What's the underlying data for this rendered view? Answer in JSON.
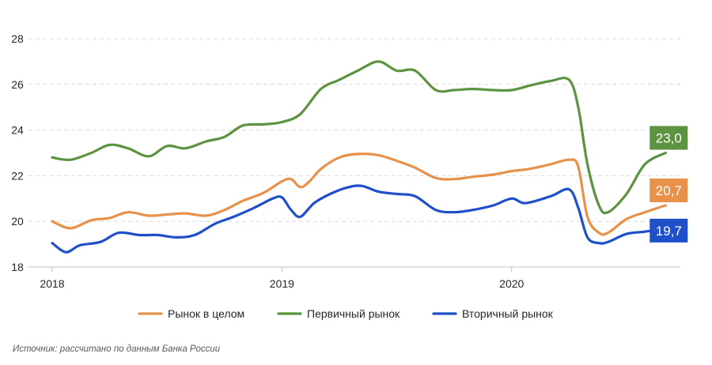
{
  "source_note": "Источник: рассчитано по данным Банка России",
  "chart_data": {
    "type": "line",
    "x_unit": "year (decimal)",
    "xlim": [
      2018,
      2020.7
    ],
    "x_ticks": [
      "2018",
      "2019",
      "2020"
    ],
    "ylim": [
      18,
      28
    ],
    "y_ticks": [
      18,
      20,
      22,
      24,
      26,
      28
    ],
    "grid": "horizontal dashed",
    "legend": "bottom",
    "series": [
      {
        "name": "Рынок в целом",
        "color": "#E8914A",
        "end_label": "20,7",
        "points": [
          [
            2018.0,
            20.0
          ],
          [
            2018.08,
            19.7
          ],
          [
            2018.17,
            20.05
          ],
          [
            2018.25,
            20.15
          ],
          [
            2018.33,
            20.4
          ],
          [
            2018.42,
            20.25
          ],
          [
            2018.5,
            20.3
          ],
          [
            2018.58,
            20.35
          ],
          [
            2018.67,
            20.25
          ],
          [
            2018.75,
            20.5
          ],
          [
            2018.83,
            20.9
          ],
          [
            2018.92,
            21.25
          ],
          [
            2019.0,
            21.75
          ],
          [
            2019.04,
            21.85
          ],
          [
            2019.08,
            21.5
          ],
          [
            2019.12,
            21.75
          ],
          [
            2019.17,
            22.3
          ],
          [
            2019.25,
            22.8
          ],
          [
            2019.33,
            22.95
          ],
          [
            2019.42,
            22.9
          ],
          [
            2019.5,
            22.65
          ],
          [
            2019.58,
            22.35
          ],
          [
            2019.67,
            21.9
          ],
          [
            2019.75,
            21.85
          ],
          [
            2019.83,
            21.95
          ],
          [
            2019.92,
            22.05
          ],
          [
            2020.0,
            22.2
          ],
          [
            2020.08,
            22.3
          ],
          [
            2020.17,
            22.5
          ],
          [
            2020.25,
            22.7
          ],
          [
            2020.29,
            22.4
          ],
          [
            2020.33,
            20.2
          ],
          [
            2020.38,
            19.5
          ],
          [
            2020.42,
            19.5
          ],
          [
            2020.5,
            20.1
          ],
          [
            2020.58,
            20.4
          ],
          [
            2020.67,
            20.7
          ]
        ]
      },
      {
        "name": "Первичный рынок",
        "color": "#5B9340",
        "end_label": "23,0",
        "points": [
          [
            2018.0,
            22.8
          ],
          [
            2018.08,
            22.7
          ],
          [
            2018.17,
            23.0
          ],
          [
            2018.25,
            23.35
          ],
          [
            2018.33,
            23.2
          ],
          [
            2018.42,
            22.85
          ],
          [
            2018.5,
            23.3
          ],
          [
            2018.58,
            23.2
          ],
          [
            2018.67,
            23.5
          ],
          [
            2018.75,
            23.7
          ],
          [
            2018.83,
            24.2
          ],
          [
            2018.92,
            24.25
          ],
          [
            2019.0,
            24.35
          ],
          [
            2019.08,
            24.7
          ],
          [
            2019.17,
            25.8
          ],
          [
            2019.25,
            26.2
          ],
          [
            2019.33,
            26.6
          ],
          [
            2019.42,
            27.0
          ],
          [
            2019.5,
            26.6
          ],
          [
            2019.58,
            26.6
          ],
          [
            2019.67,
            25.75
          ],
          [
            2019.75,
            25.75
          ],
          [
            2019.83,
            25.8
          ],
          [
            2019.92,
            25.75
          ],
          [
            2020.0,
            25.75
          ],
          [
            2020.08,
            25.95
          ],
          [
            2020.17,
            26.15
          ],
          [
            2020.25,
            26.2
          ],
          [
            2020.29,
            25.0
          ],
          [
            2020.33,
            22.5
          ],
          [
            2020.38,
            20.7
          ],
          [
            2020.42,
            20.4
          ],
          [
            2020.5,
            21.2
          ],
          [
            2020.58,
            22.5
          ],
          [
            2020.67,
            23.0
          ]
        ]
      },
      {
        "name": "Вторичный рынок",
        "color": "#1F4FC9",
        "end_label": "19,7",
        "points": [
          [
            2018.0,
            19.05
          ],
          [
            2018.06,
            18.65
          ],
          [
            2018.12,
            18.95
          ],
          [
            2018.21,
            19.1
          ],
          [
            2018.29,
            19.5
          ],
          [
            2018.38,
            19.4
          ],
          [
            2018.46,
            19.4
          ],
          [
            2018.54,
            19.3
          ],
          [
            2018.62,
            19.4
          ],
          [
            2018.71,
            19.9
          ],
          [
            2018.79,
            20.2
          ],
          [
            2018.88,
            20.6
          ],
          [
            2018.96,
            21.0
          ],
          [
            2019.0,
            21.05
          ],
          [
            2019.04,
            20.5
          ],
          [
            2019.08,
            20.2
          ],
          [
            2019.14,
            20.8
          ],
          [
            2019.21,
            21.2
          ],
          [
            2019.29,
            21.5
          ],
          [
            2019.35,
            21.55
          ],
          [
            2019.42,
            21.3
          ],
          [
            2019.5,
            21.2
          ],
          [
            2019.58,
            21.1
          ],
          [
            2019.67,
            20.5
          ],
          [
            2019.75,
            20.4
          ],
          [
            2019.83,
            20.5
          ],
          [
            2019.92,
            20.7
          ],
          [
            2020.0,
            21.0
          ],
          [
            2020.06,
            20.8
          ],
          [
            2020.17,
            21.1
          ],
          [
            2020.25,
            21.4
          ],
          [
            2020.29,
            20.6
          ],
          [
            2020.33,
            19.3
          ],
          [
            2020.38,
            19.05
          ],
          [
            2020.42,
            19.1
          ],
          [
            2020.5,
            19.45
          ],
          [
            2020.58,
            19.55
          ],
          [
            2020.67,
            19.7
          ]
        ]
      }
    ]
  }
}
